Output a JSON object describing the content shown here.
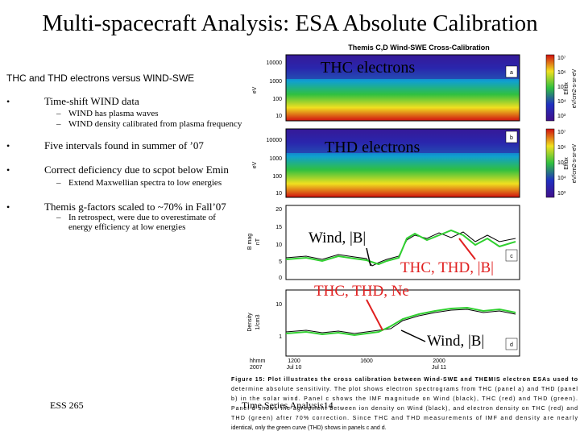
{
  "title": "Multi-spacecraft Analysis: ESA Absolute Calibration",
  "subtitle": "THC and THD electrons versus WIND-SWE",
  "bullets": [
    {
      "text": "Time-shift WIND data",
      "sub": [
        "WIND has plasma waves",
        "WIND density calibrated from plasma frequency"
      ]
    },
    {
      "text": "Five intervals found in summer of ’07"
    },
    {
      "text": "Correct deficiency due to scpot below Emin",
      "sub": [
        "Extend Maxwellian spectra to low energies"
      ]
    },
    {
      "text": "Themis g-factors scaled to ~70% in Fall’07",
      "sub": [
        "In retrospect, were due to overestimate of",
        "energy efficiency at low energies"
      ]
    }
  ],
  "figure": {
    "title": "Themis C,D  Wind-SWE Cross-Calibration",
    "panels": [
      {
        "letter": "a",
        "ylabel": "eV",
        "yticks": [
          "10000",
          "1000",
          "100",
          "10"
        ],
        "cbar_label": "Eflux",
        "cbar_unit": "eV/cm2-s-sr-eV",
        "cbar_ticks": [
          "10⁷",
          "10⁶",
          "10⁵",
          "10⁴",
          "10³"
        ]
      },
      {
        "letter": "b",
        "ylabel": "eV",
        "yticks": [
          "10000",
          "1000",
          "100",
          "10"
        ],
        "cbar_label": "Eflux",
        "cbar_unit": "eV/cm2-s-sr-eV",
        "cbar_ticks": [
          "10⁷",
          "10⁶",
          "10⁵",
          "10⁴",
          "10³"
        ]
      },
      {
        "letter": "c",
        "ylabel": "B mag",
        "unit": "nT",
        "yticks": [
          "20",
          "15",
          "10",
          "5",
          "0"
        ]
      },
      {
        "letter": "d",
        "ylabel": "Density",
        "unit": "1/cm3",
        "yticks": [
          "10",
          "1"
        ]
      }
    ],
    "annotations": [
      "THC electrons",
      "THD electrons",
      "Wind, |B|",
      "THC, THD, |B|",
      "THC, THD, Ne",
      "Wind, |B|"
    ],
    "time_axis": {
      "label": [
        "hhmm",
        "2007"
      ],
      "ticks": [
        [
          "1200",
          "Jul 10"
        ],
        [
          "1600"
        ],
        [
          "2000",
          "Jul 11"
        ]
      ]
    },
    "caption": [
      "Figure 15: Plot illustrates the cross calibration between Wind-SWE and THEMIS electron ESAs used to",
      "determine absolute sensitivity. The plot shows electron spectrograms from THC (panel a) and THD (panel",
      "b) in the solar wind. Panel c shows the IMF magnitude on Wind (black), THC (red) and THD (green).",
      "Panel d shows the agreement between ion density on Wind (black), and electron density on THC (red) and",
      "THD (green) after 70% correction. Since THC and THD measurements of IMF and density are nearly",
      "identical, only the green curve (THD) shows in panels c and d."
    ]
  },
  "footer": {
    "left": "ESS 265",
    "center": "Time Series Analysis14"
  }
}
